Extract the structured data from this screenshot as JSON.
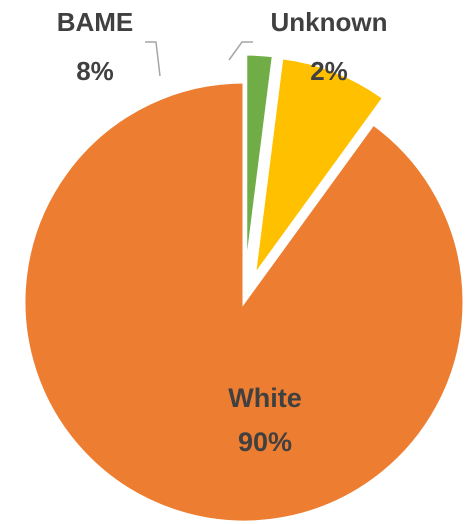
{
  "chart_data": {
    "type": "pie",
    "title": "",
    "slices": [
      {
        "label": "White",
        "value": 90,
        "value_label": "90%",
        "color": "#ED7D31"
      },
      {
        "label": "BAME",
        "value": 8,
        "value_label": "8%",
        "color": "#FFC000"
      },
      {
        "label": "Unknown",
        "value": 2,
        "value_label": "2%",
        "color": "#70AD47"
      }
    ],
    "start_angle_deg": 0,
    "direction": "counterclockwise",
    "exploded_labels": [
      "BAME",
      "Unknown"
    ],
    "leader_line_color": "#A6A6A6",
    "legend": "none"
  }
}
